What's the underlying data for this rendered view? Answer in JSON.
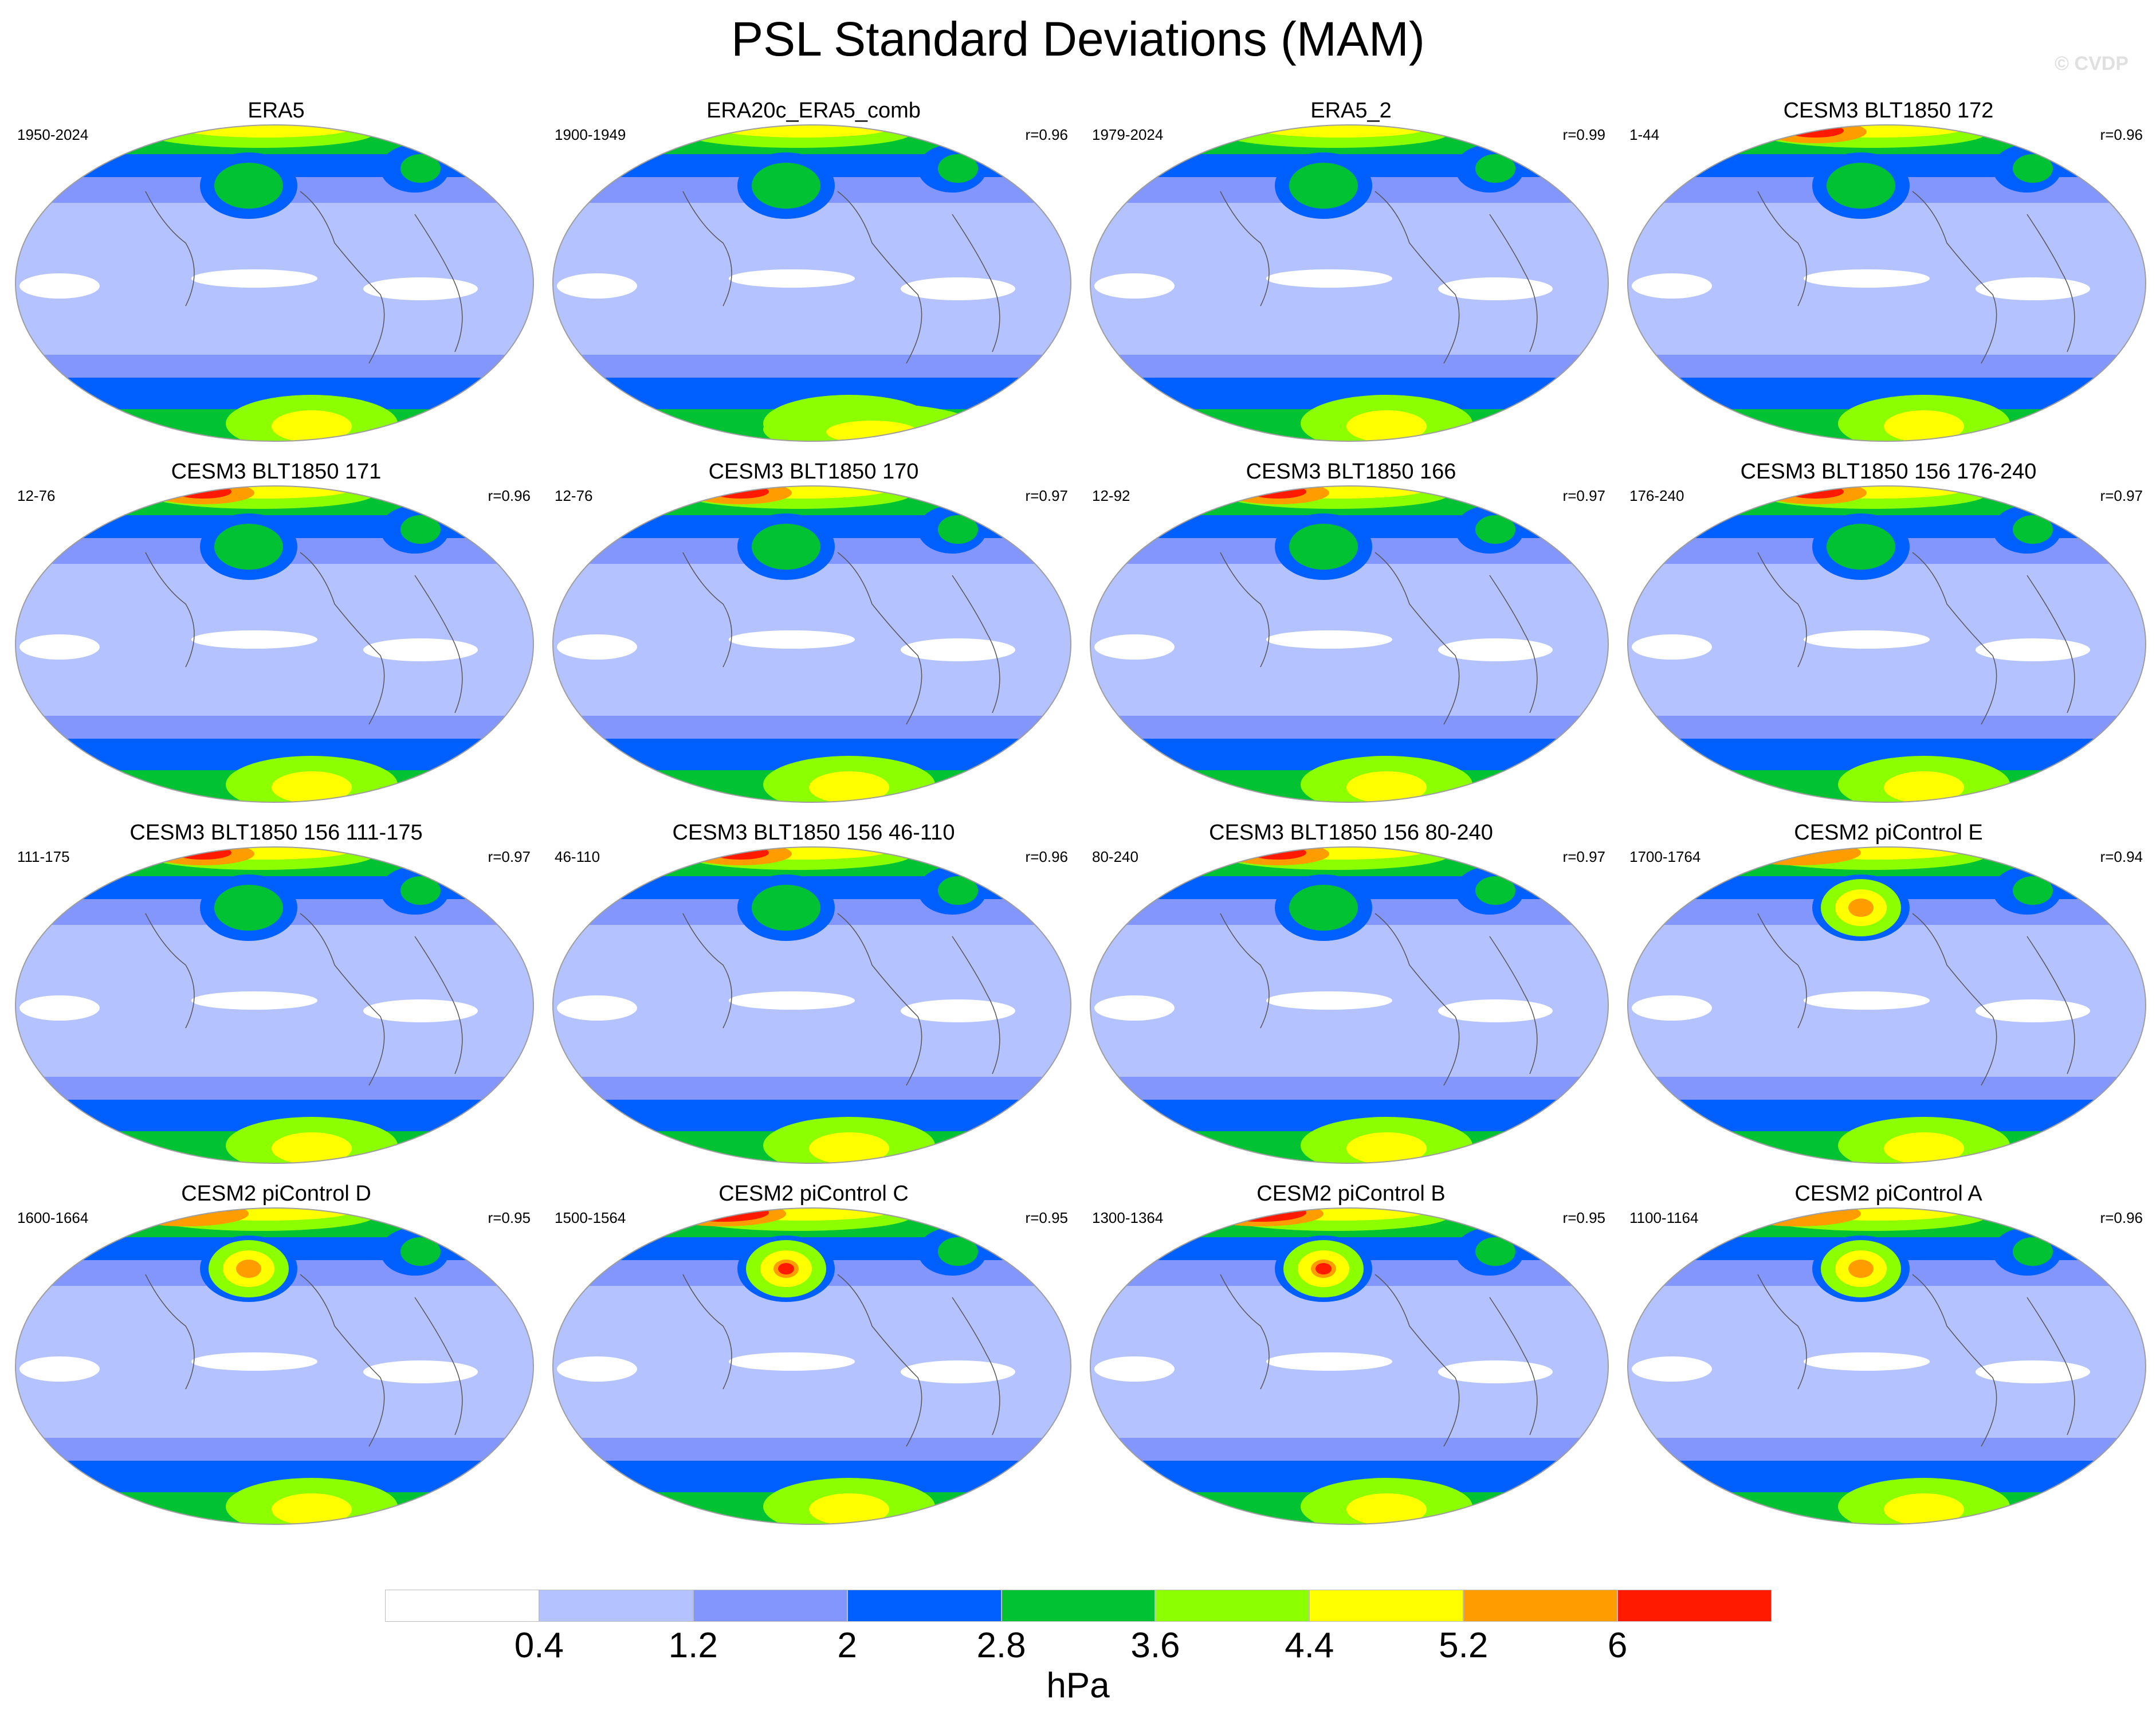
{
  "title": "PSL Standard Deviations (MAM)",
  "watermark": "© CVDP",
  "units": "hPa",
  "colorbar": {
    "levels": [
      "0.4",
      "1.2",
      "2",
      "2.8",
      "3.6",
      "4.4",
      "5.2",
      "6"
    ],
    "colors": [
      "#ffffff",
      "#b4c3ff",
      "#8296fe",
      "#0060ff",
      "#00c232",
      "#8cff00",
      "#ffff00",
      "#ff9c00",
      "#ff1a00"
    ]
  },
  "panels": [
    {
      "title": "ERA5",
      "period": "1950-2024",
      "r": "",
      "variant": 0
    },
    {
      "title": "ERA20c_ERA5_comb",
      "period": "1900-1949",
      "r": "r=0.96",
      "variant": 1
    },
    {
      "title": "ERA5_2",
      "period": "1979-2024",
      "r": "r=0.99",
      "variant": 0
    },
    {
      "title": "CESM3 BLT1850 172",
      "period": "1-44",
      "r": "r=0.96",
      "variant": 2
    },
    {
      "title": "CESM3 BLT1850 171",
      "period": "12-76",
      "r": "r=0.96",
      "variant": 2
    },
    {
      "title": "CESM3 BLT1850 170",
      "period": "12-76",
      "r": "r=0.97",
      "variant": 2
    },
    {
      "title": "CESM3 BLT1850 166",
      "period": "12-92",
      "r": "r=0.97",
      "variant": 2
    },
    {
      "title": "CESM3 BLT1850 156 176-240",
      "period": "176-240",
      "r": "r=0.97",
      "variant": 2
    },
    {
      "title": "CESM3 BLT1850 156 111-175",
      "period": "111-175",
      "r": "r=0.97",
      "variant": 2
    },
    {
      "title": "CESM3 BLT1850 156 46-110",
      "period": "46-110",
      "r": "r=0.96",
      "variant": 2
    },
    {
      "title": "CESM3 BLT1850 156 80-240",
      "period": "80-240",
      "r": "r=0.97",
      "variant": 2
    },
    {
      "title": "CESM2 piControl E",
      "period": "1700-1764",
      "r": "r=0.94",
      "variant": 3
    },
    {
      "title": "CESM2 piControl D",
      "period": "1600-1664",
      "r": "r=0.95",
      "variant": 3
    },
    {
      "title": "CESM2 piControl C",
      "period": "1500-1564",
      "r": "r=0.95",
      "variant": 4
    },
    {
      "title": "CESM2 piControl B",
      "period": "1300-1364",
      "r": "r=0.95",
      "variant": 4
    },
    {
      "title": "CESM2 piControl A",
      "period": "1100-1164",
      "r": "r=0.96",
      "variant": 3
    }
  ]
}
